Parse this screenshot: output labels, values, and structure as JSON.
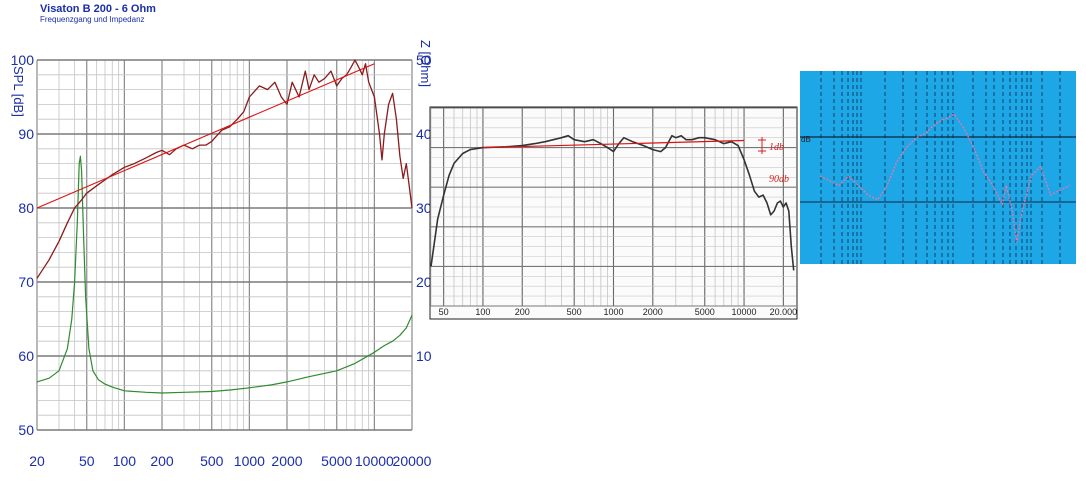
{
  "header": {
    "title": "Visaton B 200 - 6 Ohm",
    "subtitle": "Frequenzgang und Impedanz"
  },
  "colors": {
    "axis_text": "#1a2ea8",
    "spl_trace": "#8b1a1a",
    "trend_line": "#dd1111",
    "impedance_trace": "#2e8b2e",
    "panel3_bg": "#1ea7e6"
  },
  "chart_data": [
    {
      "type": "line",
      "xscale": "log",
      "xlim": [
        20,
        20000
      ],
      "ylim": [
        50,
        100
      ],
      "ylabel": "SPL [dB]",
      "ylabel_right": "Z [Ohm]",
      "ylim_right": [
        0,
        50
      ],
      "x_ticks": [
        20,
        50,
        100,
        200,
        500,
        1000,
        2000,
        5000,
        10000,
        20000
      ],
      "y_ticks": [
        50,
        60,
        70,
        80,
        90,
        100
      ],
      "y_ticks_right": [
        10,
        20,
        30,
        40,
        50
      ],
      "grid": true,
      "series": [
        {
          "points": [
            [
              20,
              70.5
            ],
            [
              25,
              73
            ],
            [
              30,
              75.5
            ],
            [
              35,
              78
            ],
            [
              40,
              80
            ],
            [
              45,
              81
            ],
            [
              50,
              82
            ],
            [
              60,
              83
            ],
            [
              70,
              83.8
            ],
            [
              80,
              84.5
            ],
            [
              100,
              85.5
            ],
            [
              120,
              86
            ],
            [
              150,
              86.8
            ],
            [
              180,
              87.5
            ],
            [
              200,
              87.8
            ],
            [
              230,
              87.2
            ],
            [
              260,
              88
            ],
            [
              300,
              88.5
            ],
            [
              350,
              88
            ],
            [
              400,
              88.5
            ],
            [
              450,
              88.5
            ],
            [
              500,
              89
            ],
            [
              600,
              90.5
            ],
            [
              700,
              91
            ],
            [
              800,
              92
            ],
            [
              900,
              93
            ],
            [
              1000,
              95
            ],
            [
              1200,
              96.5
            ],
            [
              1400,
              96
            ],
            [
              1600,
              97
            ],
            [
              1800,
              95
            ],
            [
              2000,
              94
            ],
            [
              2200,
              97
            ],
            [
              2500,
              95
            ],
            [
              2800,
              98.5
            ],
            [
              3000,
              96
            ],
            [
              3300,
              98
            ],
            [
              3600,
              97
            ],
            [
              4000,
              97.5
            ],
            [
              4500,
              98.5
            ],
            [
              5000,
              96.5
            ],
            [
              5500,
              97.5
            ],
            [
              6000,
              98
            ],
            [
              6500,
              99
            ],
            [
              7000,
              100
            ],
            [
              7500,
              99
            ],
            [
              8000,
              98
            ],
            [
              8500,
              99.5
            ],
            [
              9000,
              97
            ],
            [
              10000,
              95
            ],
            [
              11000,
              90
            ],
            [
              11500,
              86.5
            ],
            [
              12000,
              90
            ],
            [
              13000,
              94
            ],
            [
              14000,
              95.5
            ],
            [
              15000,
              92
            ],
            [
              16000,
              87
            ],
            [
              17000,
              84
            ],
            [
              18000,
              86
            ],
            [
              19000,
              83
            ],
            [
              20000,
              80
            ]
          ]
        },
        {
          "points": [
            [
              20,
              80
            ],
            [
              10000,
              99.5
            ]
          ]
        },
        {
          "axis": "right",
          "points": [
            [
              20,
              6.5
            ],
            [
              25,
              7
            ],
            [
              30,
              8
            ],
            [
              35,
              11
            ],
            [
              38,
              15
            ],
            [
              40,
              20
            ],
            [
              42,
              28
            ],
            [
              43.5,
              36
            ],
            [
              44.5,
              37
            ],
            [
              45.5,
              35
            ],
            [
              47,
              27
            ],
            [
              49,
              18
            ],
            [
              52,
              11
            ],
            [
              56,
              8
            ],
            [
              62,
              6.8
            ],
            [
              70,
              6.2
            ],
            [
              80,
              5.8
            ],
            [
              100,
              5.3
            ],
            [
              150,
              5.1
            ],
            [
              200,
              5.0
            ],
            [
              300,
              5.1
            ],
            [
              500,
              5.2
            ],
            [
              700,
              5.4
            ],
            [
              1000,
              5.7
            ],
            [
              1500,
              6.1
            ],
            [
              2000,
              6.5
            ],
            [
              3000,
              7.2
            ],
            [
              5000,
              8.0
            ],
            [
              7000,
              9.0
            ],
            [
              10000,
              10.5
            ],
            [
              12000,
              11.4
            ],
            [
              14000,
              12.0
            ],
            [
              16000,
              12.8
            ],
            [
              18000,
              13.8
            ],
            [
              20000,
              15.5
            ]
          ]
        }
      ]
    },
    {
      "type": "line",
      "xscale": "log",
      "xlim": [
        40,
        25000
      ],
      "x_ticks": [
        50,
        100,
        200,
        500,
        1000,
        2000,
        5000,
        10000,
        20000
      ],
      "x_tick_labels": [
        "50",
        "100",
        "200",
        "500",
        "1000",
        "2000",
        "5000",
        "10000",
        "20.000"
      ],
      "annotations": [
        "1db",
        "90db"
      ],
      "grid": true,
      "series": [
        {
          "points": [
            [
              40,
              10
            ],
            [
              42,
              15
            ],
            [
              45,
              22
            ],
            [
              50,
              28
            ],
            [
              55,
              33
            ],
            [
              60,
              36
            ],
            [
              70,
              38.5
            ],
            [
              80,
              39.5
            ],
            [
              100,
              40
            ],
            [
              150,
              40.2
            ],
            [
              200,
              40.5
            ],
            [
              250,
              41
            ],
            [
              300,
              41.5
            ],
            [
              400,
              42.5
            ],
            [
              450,
              43
            ],
            [
              500,
              42
            ],
            [
              600,
              41.5
            ],
            [
              700,
              42
            ],
            [
              800,
              41
            ],
            [
              900,
              40
            ],
            [
              1000,
              39
            ],
            [
              1100,
              41
            ],
            [
              1200,
              42.5
            ],
            [
              1400,
              41.5
            ],
            [
              1700,
              40.5
            ],
            [
              2000,
              39.5
            ],
            [
              2300,
              39
            ],
            [
              2500,
              40
            ],
            [
              2800,
              43
            ],
            [
              3000,
              42.5
            ],
            [
              3300,
              43
            ],
            [
              3600,
              42
            ],
            [
              4000,
              42
            ],
            [
              4500,
              42.5
            ],
            [
              5000,
              42.5
            ],
            [
              6000,
              42
            ],
            [
              7000,
              41
            ],
            [
              8000,
              41.5
            ],
            [
              9000,
              40.5
            ],
            [
              10000,
              37
            ],
            [
              11000,
              33
            ],
            [
              12000,
              29
            ],
            [
              13000,
              27.5
            ],
            [
              14000,
              28
            ],
            [
              15000,
              26
            ],
            [
              16000,
              23
            ],
            [
              17000,
              24
            ],
            [
              18000,
              26
            ],
            [
              19000,
              26.5
            ],
            [
              20000,
              25
            ],
            [
              21000,
              26
            ],
            [
              22000,
              24
            ],
            [
              23000,
              15
            ],
            [
              24000,
              9
            ]
          ]
        },
        {
          "points": [
            [
              100,
              40
            ],
            [
              10000,
              41.8
            ]
          ]
        }
      ]
    },
    {
      "type": "line",
      "annotations": [
        "dB"
      ],
      "grid": true,
      "series": [
        {
          "points": [
            [
              0,
              0
            ],
            [
              1,
              -0.5
            ],
            [
              2,
              -1
            ],
            [
              3,
              0
            ],
            [
              4,
              -1
            ],
            [
              5,
              -2
            ],
            [
              6,
              -2.5
            ],
            [
              7,
              -1
            ],
            [
              8,
              1.5
            ],
            [
              9,
              3
            ],
            [
              10,
              4
            ],
            [
              11,
              4.5
            ],
            [
              12,
              5.5
            ],
            [
              13,
              6
            ],
            [
              14,
              6.5
            ],
            [
              15,
              5
            ],
            [
              16,
              3
            ],
            [
              17,
              0.5
            ],
            [
              18,
              -1
            ],
            [
              19,
              -3
            ],
            [
              19.4,
              -1
            ],
            [
              20,
              -3.5
            ],
            [
              20.5,
              -7
            ],
            [
              21,
              -4
            ],
            [
              22,
              0
            ],
            [
              23,
              1
            ],
            [
              24,
              -2
            ],
            [
              25,
              -1.5
            ],
            [
              26,
              -1
            ]
          ]
        }
      ]
    }
  ]
}
